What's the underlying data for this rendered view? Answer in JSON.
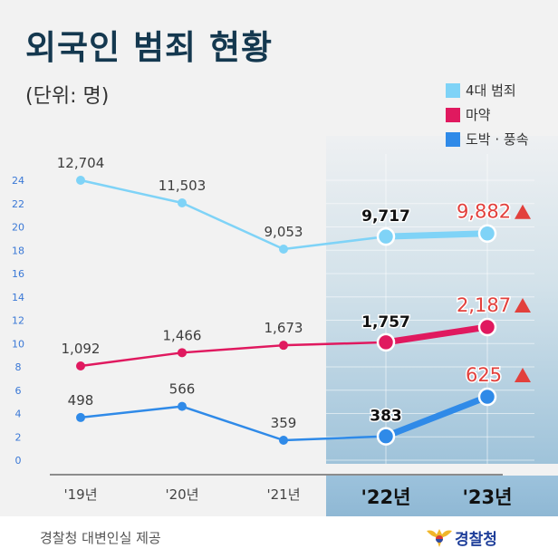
{
  "header": {
    "title": "외국인 범죄 현황",
    "unit": "(단위: 명)"
  },
  "footer": {
    "source": "경찰청 대변인실 제공",
    "logo_text": "경찰청"
  },
  "colors": {
    "crime": "#7fd3f7",
    "drug": "#e0195f",
    "gambling": "#2f8ae8",
    "increase": "#e2403c",
    "title": "#14384f",
    "axis_tick": "#3a78d6"
  },
  "chart_data": {
    "type": "line",
    "title": "외국인 범죄 현황",
    "ylabel": "(단위: 명)",
    "categories": [
      "'19년",
      "'20년",
      "'21년",
      "'22년",
      "'23년"
    ],
    "y_ticks": [
      "24",
      "22",
      "20",
      "18",
      "16",
      "14",
      "12",
      "10",
      "8",
      "6",
      "4",
      "2",
      "0"
    ],
    "ylim": [
      0,
      24
    ],
    "legend_position": "top-right",
    "highlighted_categories": [
      "'22년",
      "'23년"
    ],
    "series": [
      {
        "name": "4대 범죄",
        "values": [
          12704,
          11503,
          9053,
          9717,
          9882
        ],
        "labels": [
          "12,704",
          "11,503",
          "9,053",
          "9,717",
          "9,882"
        ]
      },
      {
        "name": "마약",
        "values": [
          1092,
          1466,
          1673,
          1757,
          2187
        ],
        "labels": [
          "1,092",
          "1,466",
          "1,673",
          "1,757",
          "2,187"
        ]
      },
      {
        "name": "도박 · 풍속",
        "values": [
          498,
          566,
          359,
          383,
          625
        ],
        "labels": [
          "498",
          "566",
          "359",
          "383",
          "625"
        ]
      }
    ],
    "annotations": [
      "increase-triangle",
      "increase-triangle",
      "increase-triangle"
    ]
  }
}
